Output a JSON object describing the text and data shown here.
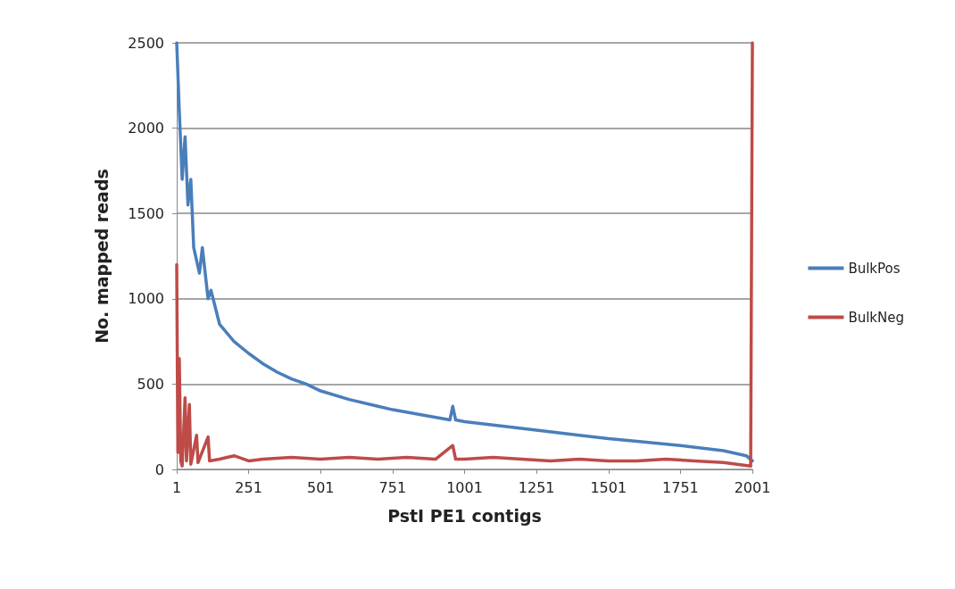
{
  "chart_data": {
    "type": "line",
    "xlabel": "PstI PE1 contigs",
    "ylabel": "No. mapped reads",
    "xlim": [
      1,
      2001
    ],
    "xticks": [
      1,
      251,
      501,
      751,
      1001,
      1251,
      1501,
      1751,
      2001
    ],
    "ylim": [
      0,
      2500
    ],
    "yticks": [
      0,
      500,
      1000,
      1500,
      2000,
      2500
    ],
    "grid": "y",
    "legend": "right",
    "marker": "none",
    "line_style": "solid",
    "series": [
      {
        "name": "BulkPos",
        "color": "#4a7ebb",
        "x": [
          1,
          10,
          20,
          30,
          40,
          50,
          60,
          80,
          90,
          110,
          120,
          150,
          200,
          251,
          300,
          350,
          400,
          451,
          501,
          600,
          700,
          751,
          850,
          950,
          960,
          970,
          1001,
          1100,
          1251,
          1400,
          1501,
          1600,
          1751,
          1900,
          1980,
          2001
        ],
        "values": [
          2500,
          2100,
          1700,
          1950,
          1550,
          1700,
          1300,
          1150,
          1300,
          1000,
          1050,
          850,
          750,
          680,
          620,
          570,
          530,
          500,
          460,
          410,
          370,
          350,
          320,
          290,
          370,
          290,
          280,
          260,
          230,
          200,
          180,
          165,
          140,
          110,
          80,
          50
        ]
      },
      {
        "name": "BulkNeg",
        "color": "#be4b48",
        "x": [
          1,
          5,
          10,
          15,
          20,
          30,
          35,
          45,
          50,
          70,
          75,
          110,
          115,
          150,
          200,
          251,
          300,
          400,
          500,
          600,
          700,
          800,
          900,
          960,
          970,
          1001,
          1100,
          1200,
          1300,
          1400,
          1500,
          1600,
          1700,
          1800,
          1900,
          1995,
          2001
        ],
        "values": [
          1200,
          100,
          650,
          50,
          20,
          420,
          50,
          380,
          30,
          200,
          40,
          190,
          50,
          60,
          80,
          50,
          60,
          70,
          60,
          70,
          60,
          70,
          60,
          140,
          60,
          60,
          70,
          60,
          50,
          60,
          50,
          50,
          60,
          50,
          40,
          20,
          2500
        ]
      }
    ]
  }
}
